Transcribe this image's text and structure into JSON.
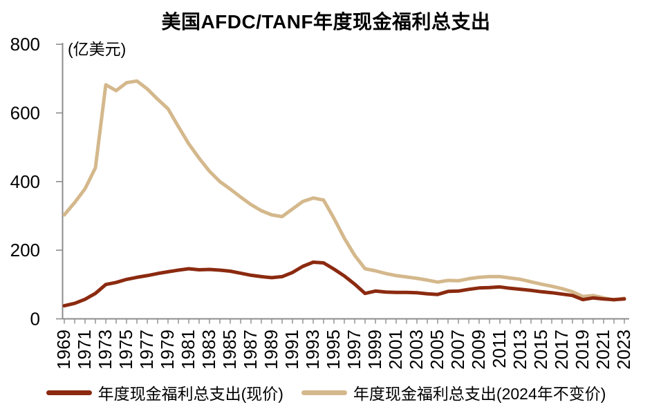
{
  "title": "美国AFDC/TANF年度现金福利总支出",
  "unit_label": "(亿美元)",
  "legend": {
    "items": [
      {
        "label": "年度现金福利总支出(现价)",
        "color": "#8B2A10"
      },
      {
        "label": "年度现金福利总支出(2024年不变价)",
        "color": "#D4B88C"
      }
    ]
  },
  "axis": {
    "color": "#8C8C8C",
    "tick_label_color": "#000000"
  },
  "chart_data": {
    "type": "line",
    "title": "美国AFDC/TANF年度现金福利总支出",
    "xlabel": "",
    "ylabel": "(亿美元)",
    "ylim": [
      0,
      800
    ],
    "yticks": [
      0,
      200,
      400,
      600,
      800
    ],
    "grid": false,
    "legend_position": "bottom",
    "x_tick_label_step": 2,
    "x": [
      1969,
      1970,
      1971,
      1972,
      1973,
      1974,
      1975,
      1976,
      1977,
      1978,
      1979,
      1980,
      1981,
      1982,
      1983,
      1984,
      1985,
      1986,
      1987,
      1988,
      1989,
      1990,
      1991,
      1992,
      1993,
      1994,
      1995,
      1996,
      1997,
      1998,
      1999,
      2000,
      2001,
      2002,
      2003,
      2004,
      2005,
      2006,
      2007,
      2008,
      2009,
      2010,
      2011,
      2012,
      2013,
      2014,
      2015,
      2016,
      2017,
      2018,
      2019,
      2020,
      2021,
      2022,
      2023
    ],
    "series": [
      {
        "name": "年度现金福利总支出(现价)",
        "color": "#8B2A10",
        "values": [
          38,
          45,
          57,
          74,
          100,
          106,
          115,
          121,
          126,
          132,
          137,
          142,
          146,
          143,
          144,
          142,
          139,
          133,
          127,
          123,
          120,
          123,
          135,
          153,
          165,
          163,
          145,
          125,
          101,
          74,
          81,
          78,
          77,
          77,
          76,
          73,
          71,
          80,
          81,
          86,
          90,
          91,
          93,
          89,
          86,
          83,
          79,
          76,
          72,
          68,
          56,
          61,
          58,
          56,
          58
        ]
      },
      {
        "name": "年度现金福利总支出(2024年不变价)",
        "color": "#D4B88C",
        "values": [
          303,
          339,
          379,
          440,
          682,
          665,
          688,
          693,
          670,
          640,
          612,
          560,
          510,
          468,
          430,
          400,
          378,
          355,
          333,
          315,
          303,
          298,
          320,
          342,
          352,
          346,
          293,
          235,
          185,
          146,
          140,
          132,
          126,
          122,
          118,
          113,
          107,
          112,
          111,
          117,
          121,
          123,
          123,
          119,
          115,
          108,
          101,
          95,
          88,
          79,
          65,
          68,
          61,
          55,
          60
        ]
      }
    ]
  }
}
